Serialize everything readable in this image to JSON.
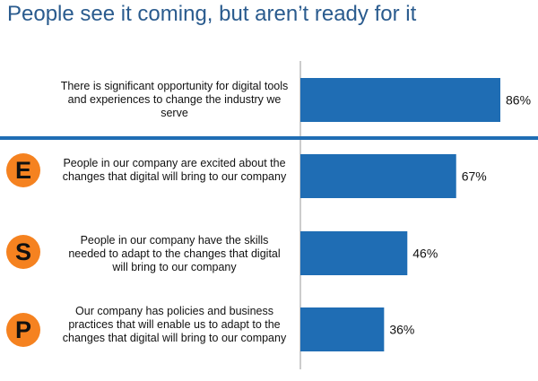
{
  "title": "People see it coming, but aren’t ready for it",
  "colors": {
    "bar": "#1f6db4",
    "title": "#2a5b8e",
    "badge": "#f58220",
    "axis": "#999999"
  },
  "badges": [
    "E",
    "S",
    "P"
  ],
  "chart_data": {
    "type": "bar",
    "orientation": "horizontal",
    "categories": [
      "There is significant opportunity for digital tools and experiences to change the industry we serve",
      "People in our company are excited about the changes that digital will bring to our company",
      "People in our company have the skills needed to adapt to the changes that digital will bring to our company",
      "Our company has policies and business practices that will enable us to adapt to the changes that digital will bring to our company"
    ],
    "values": [
      86,
      67,
      46,
      36
    ],
    "value_labels": [
      "86%",
      "67%",
      "46%",
      "36%"
    ],
    "xlim": [
      0,
      100
    ],
    "grid": false,
    "legend": "none"
  }
}
